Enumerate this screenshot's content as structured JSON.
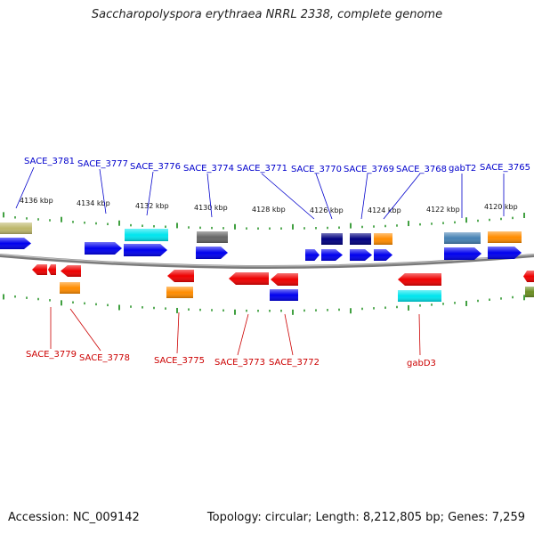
{
  "title": "Saccharopolyspora erythraea NRRL 2338, complete genome",
  "footer": {
    "accession": "Accession: NC_009142",
    "topology": "Topology: circular; Length: 8,212,805 bp; Genes: 7,259"
  },
  "scale_labels": [
    "4136 kbp",
    "4134 kbp",
    "4132 kbp",
    "4130 kbp",
    "4128 kbp",
    "4126 kbp",
    "4124 kbp",
    "4122 kbp",
    "4120 kbp"
  ],
  "top_labels": [
    "SACE_3781",
    "SACE_3777",
    "SACE_3776",
    "SACE_3774",
    "SACE_3771",
    "SACE_3770",
    "SACE_3769",
    "SACE_3768",
    "gabT2",
    "SACE_3765"
  ],
  "bottom_labels": [
    "SACE_3779",
    "SACE_3778",
    "SACE_3775",
    "SACE_3773",
    "SACE_3772",
    "gabD3"
  ],
  "colors": {
    "forward": "#0000ee",
    "reverse": "#ee0000",
    "backbone": "#808080",
    "tick": "#118811",
    "navy": "#000080",
    "orange": "#ff8c00",
    "cyan": "#00e5ee",
    "steelblue": "#4682b4",
    "gray": "#666666",
    "khaki": "#bdb76b",
    "olive": "#6b8e23",
    "top_label": "#0000cc",
    "bottom_label": "#cc0000"
  }
}
